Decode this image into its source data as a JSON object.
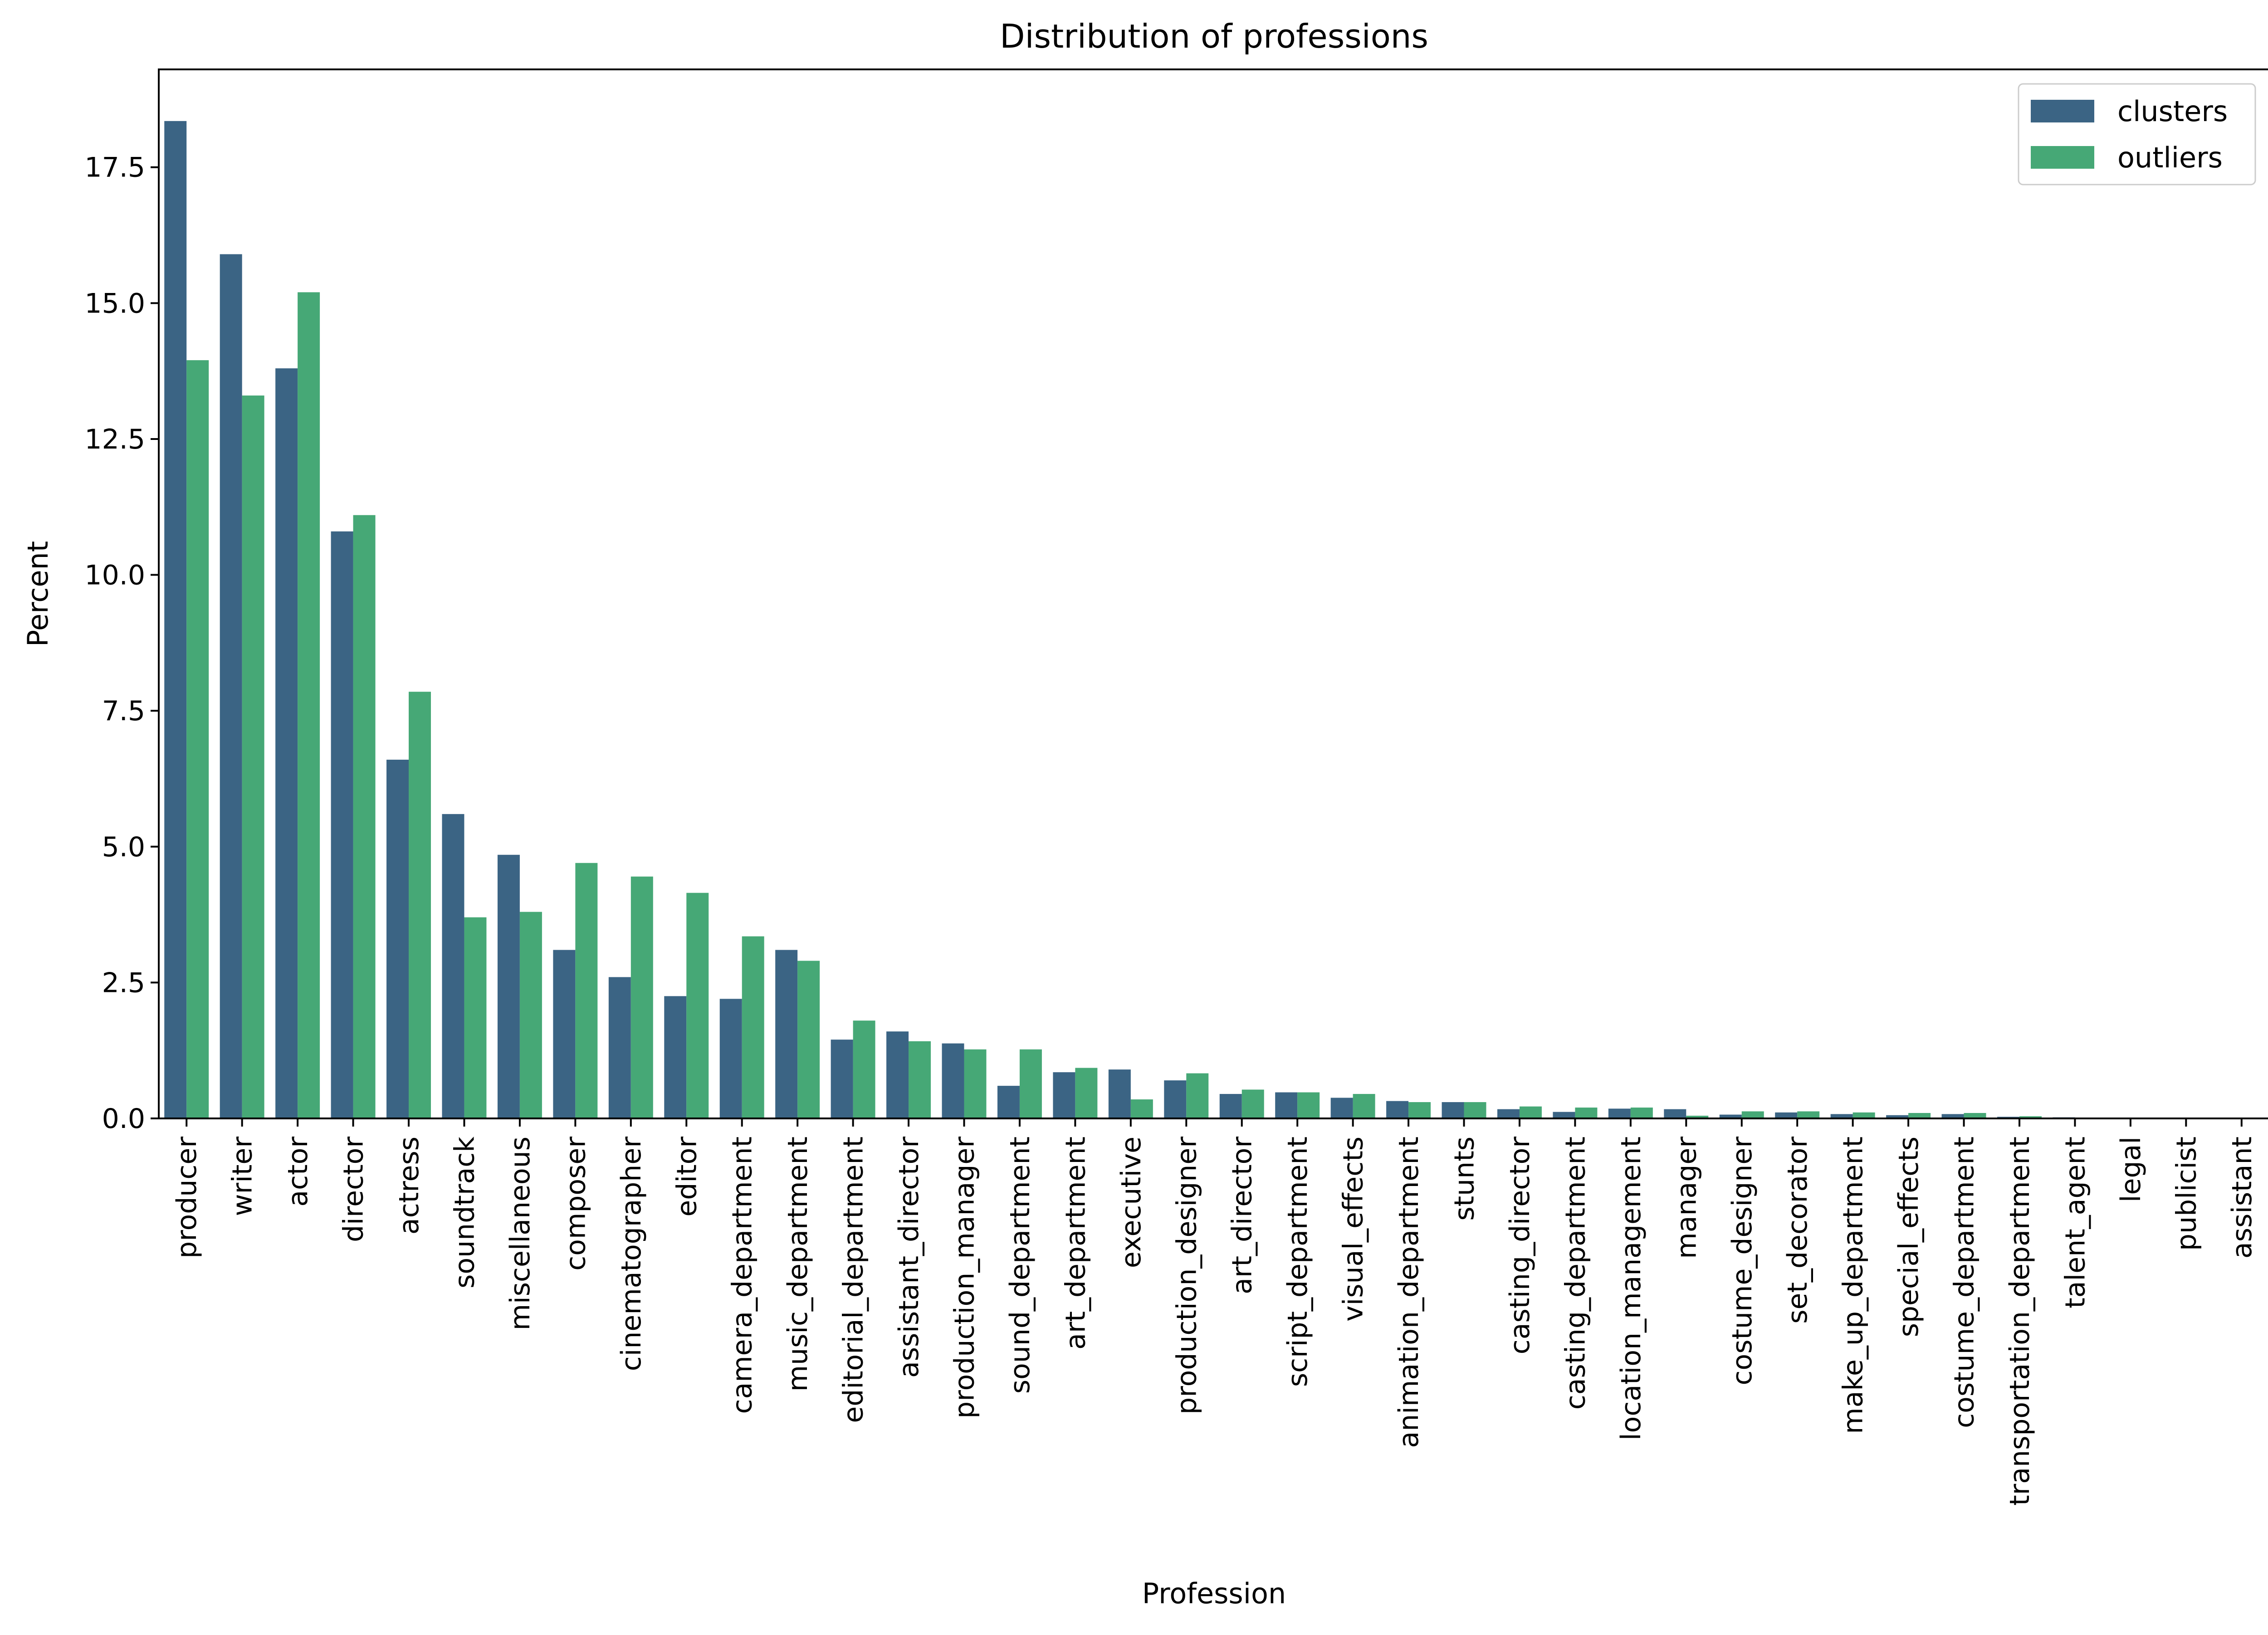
{
  "chart_data": {
    "type": "bar",
    "title": "Distribution of professions",
    "xlabel": "Profession",
    "ylabel": "Percent",
    "ylim": [
      0,
      19.3
    ],
    "yticks": [
      0.0,
      2.5,
      5.0,
      7.5,
      10.0,
      12.5,
      15.0,
      17.5
    ],
    "ytick_labels": [
      "0.0",
      "2.5",
      "5.0",
      "7.5",
      "10.0",
      "12.5",
      "15.0",
      "17.5"
    ],
    "grid": false,
    "legend_position": "top-right",
    "categories": [
      "producer",
      "writer",
      "actor",
      "director",
      "actress",
      "soundtrack",
      "miscellaneous",
      "composer",
      "cinematographer",
      "editor",
      "camera_department",
      "music_department",
      "editorial_department",
      "assistant_director",
      "production_manager",
      "sound_department",
      "art_department",
      "executive",
      "production_designer",
      "art_director",
      "script_department",
      "visual_effects",
      "animation_department",
      "stunts",
      "casting_director",
      "casting_department",
      "location_management",
      "manager",
      "costume_designer",
      "set_decorator",
      "make_up_department",
      "special_effects",
      "costume_department",
      "transportation_department",
      "talent_agent",
      "legal",
      "publicist",
      "assistant"
    ],
    "series": [
      {
        "name": "clusters",
        "color": "#3b6484",
        "values": [
          18.35,
          15.9,
          13.8,
          10.8,
          6.6,
          5.6,
          4.85,
          3.1,
          2.6,
          2.25,
          2.2,
          3.1,
          1.45,
          1.6,
          1.38,
          0.6,
          0.85,
          0.9,
          0.7,
          0.45,
          0.48,
          0.38,
          0.32,
          0.3,
          0.17,
          0.12,
          0.18,
          0.17,
          0.07,
          0.11,
          0.08,
          0.06,
          0.08,
          0.03,
          0.02,
          0.01,
          0.01,
          0.01
        ]
      },
      {
        "name": "outliers",
        "color": "#46a876",
        "values": [
          13.95,
          13.3,
          15.2,
          11.1,
          7.85,
          3.7,
          3.8,
          4.7,
          4.45,
          4.15,
          3.35,
          2.9,
          1.8,
          1.42,
          1.27,
          1.27,
          0.93,
          0.35,
          0.83,
          0.53,
          0.48,
          0.45,
          0.3,
          0.3,
          0.22,
          0.2,
          0.2,
          0.05,
          0.13,
          0.13,
          0.11,
          0.1,
          0.1,
          0.04,
          0.0,
          0.0,
          0.0,
          0.0
        ]
      }
    ]
  }
}
